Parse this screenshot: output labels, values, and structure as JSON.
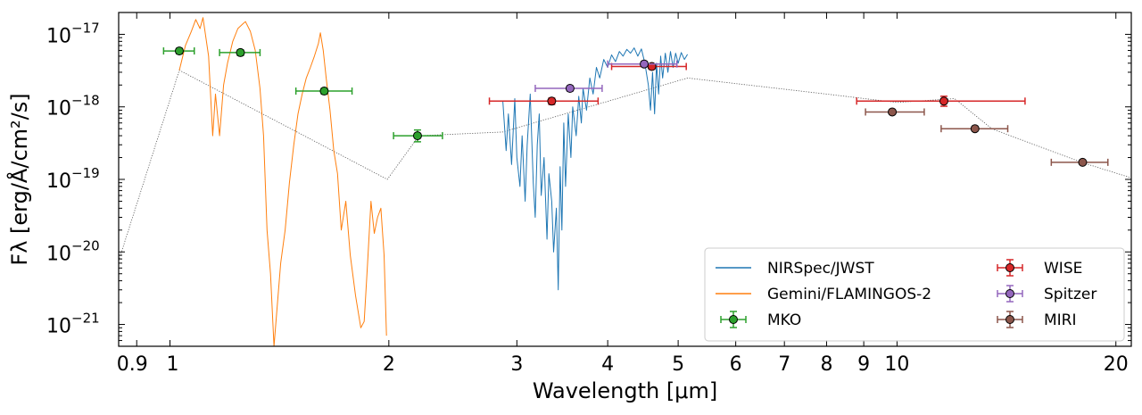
{
  "chart_data": {
    "type": "scatter",
    "xscale": "log",
    "yscale": "log",
    "xlabel": "Wavelength [μm]",
    "ylabel": "Fλ [erg/Å/cm²/s]",
    "xlim": [
      0.85,
      21
    ],
    "ylim": [
      5e-22,
      2e-17
    ],
    "xticks": [
      {
        "value": 0.9,
        "label": "0.9"
      },
      {
        "value": 1,
        "label": "1"
      },
      {
        "value": 2,
        "label": "2"
      },
      {
        "value": 3,
        "label": "3"
      },
      {
        "value": 4,
        "label": "4"
      },
      {
        "value": 5,
        "label": "5"
      },
      {
        "value": 6,
        "label": "6"
      },
      {
        "value": 7,
        "label": "7"
      },
      {
        "value": 8,
        "label": "8"
      },
      {
        "value": 9,
        "label": "9"
      },
      {
        "value": 10,
        "label": "10"
      },
      {
        "value": 20,
        "label": "20"
      }
    ],
    "yticks": [
      {
        "value": 1e-17,
        "base": "10",
        "exp": "−17"
      },
      {
        "value": 1e-18,
        "base": "10",
        "exp": "−18"
      },
      {
        "value": 1e-19,
        "base": "10",
        "exp": "−19"
      },
      {
        "value": 1e-20,
        "base": "10",
        "exp": "−20"
      },
      {
        "value": 1e-21,
        "base": "10",
        "exp": "−21"
      }
    ],
    "colors": {
      "nirspec": "#1f77b4",
      "flamingos": "#ff7f0e",
      "mko": "#2ca02c",
      "wise": "#d62728",
      "spitzer": "#9467bd",
      "miri": "#8c564b",
      "model": "#555555"
    },
    "spectra": [
      {
        "name": "NIRSpec/JWST",
        "color": "#1f77b4",
        "points": [
          [
            2.87,
            1.2e-18
          ],
          [
            2.9,
            2.5e-19
          ],
          [
            2.92,
            8e-19
          ],
          [
            2.95,
            1.6e-19
          ],
          [
            2.98,
            1.3e-18
          ],
          [
            3.0,
            2e-19
          ],
          [
            3.03,
            8e-20
          ],
          [
            3.05,
            4e-19
          ],
          [
            3.08,
            5e-20
          ],
          [
            3.1,
            3e-19
          ],
          [
            3.13,
            1.5e-18
          ],
          [
            3.16,
            9e-20
          ],
          [
            3.18,
            3e-20
          ],
          [
            3.2,
            3e-19
          ],
          [
            3.22,
            8e-19
          ],
          [
            3.24,
            6e-20
          ],
          [
            3.27,
            2e-19
          ],
          [
            3.3,
            1.5e-20
          ],
          [
            3.32,
            1.2e-19
          ],
          [
            3.35,
            5e-20
          ],
          [
            3.37,
            1e-20
          ],
          [
            3.4,
            4e-20
          ],
          [
            3.42,
            3e-21
          ],
          [
            3.44,
            1.5e-19
          ],
          [
            3.46,
            2e-20
          ],
          [
            3.48,
            6e-19
          ],
          [
            3.5,
            8e-20
          ],
          [
            3.53,
            8e-19
          ],
          [
            3.56,
            2e-19
          ],
          [
            3.58,
            1e-18
          ],
          [
            3.62,
            4e-19
          ],
          [
            3.65,
            1.4e-18
          ],
          [
            3.68,
            6e-19
          ],
          [
            3.7,
            1.8e-18
          ],
          [
            3.74,
            9e-19
          ],
          [
            3.78,
            2.5e-18
          ],
          [
            3.82,
            1.5e-18
          ],
          [
            3.86,
            3.5e-18
          ],
          [
            3.9,
            2.5e-18
          ],
          [
            3.95,
            4.5e-18
          ],
          [
            4.0,
            3.5e-18
          ],
          [
            4.05,
            5.2e-18
          ],
          [
            4.1,
            4.2e-18
          ],
          [
            4.15,
            5.8e-18
          ],
          [
            4.2,
            5e-18
          ],
          [
            4.25,
            6.2e-18
          ],
          [
            4.3,
            5.5e-18
          ],
          [
            4.35,
            6.5e-18
          ],
          [
            4.4,
            5e-18
          ],
          [
            4.45,
            6.3e-18
          ],
          [
            4.5,
            4e-18
          ],
          [
            4.55,
            2e-18
          ],
          [
            4.58,
            9e-19
          ],
          [
            4.61,
            3e-18
          ],
          [
            4.64,
            8e-19
          ],
          [
            4.67,
            4e-18
          ],
          [
            4.7,
            1.5e-18
          ],
          [
            4.73,
            5e-18
          ],
          [
            4.76,
            2.5e-18
          ],
          [
            4.8,
            5.5e-18
          ],
          [
            4.84,
            3e-18
          ],
          [
            4.88,
            5.8e-18
          ],
          [
            4.92,
            3.5e-18
          ],
          [
            4.96,
            5.5e-18
          ],
          [
            5.0,
            4e-18
          ],
          [
            5.05,
            5.6e-18
          ],
          [
            5.1,
            4.5e-18
          ],
          [
            5.15,
            5.3e-18
          ]
        ]
      },
      {
        "name": "Gemini/FLAMINGOS-2",
        "color": "#ff7f0e",
        "points": [
          [
            1.03,
            3.2e-18
          ],
          [
            1.05,
            7e-18
          ],
          [
            1.07,
            1.1e-17
          ],
          [
            1.085,
            1.6e-17
          ],
          [
            1.1,
            1.2e-17
          ],
          [
            1.11,
            1.7e-17
          ],
          [
            1.13,
            5e-18
          ],
          [
            1.145,
            4e-19
          ],
          [
            1.155,
            1.5e-18
          ],
          [
            1.17,
            4e-19
          ],
          [
            1.185,
            2e-18
          ],
          [
            1.2,
            4e-18
          ],
          [
            1.22,
            8e-18
          ],
          [
            1.24,
            1.2e-17
          ],
          [
            1.26,
            1.4e-17
          ],
          [
            1.27,
            1.5e-17
          ],
          [
            1.29,
            1.1e-17
          ],
          [
            1.31,
            6e-18
          ],
          [
            1.33,
            1.8e-18
          ],
          [
            1.345,
            4e-19
          ],
          [
            1.36,
            2e-20
          ],
          [
            1.375,
            5e-21
          ],
          [
            1.39,
            5e-22
          ],
          [
            1.42,
            7e-21
          ],
          [
            1.44,
            2e-20
          ],
          [
            1.46,
            9e-20
          ],
          [
            1.48,
            3e-19
          ],
          [
            1.5,
            8e-19
          ],
          [
            1.52,
            1.5e-18
          ],
          [
            1.54,
            2.5e-18
          ],
          [
            1.56,
            3.5e-18
          ],
          [
            1.58,
            5e-18
          ],
          [
            1.6,
            7.5e-18
          ],
          [
            1.61,
            1.05e-17
          ],
          [
            1.625,
            6e-18
          ],
          [
            1.64,
            2.5e-18
          ],
          [
            1.66,
            9e-19
          ],
          [
            1.68,
            2.5e-19
          ],
          [
            1.7,
            1.2e-19
          ],
          [
            1.72,
            2e-20
          ],
          [
            1.745,
            5e-20
          ],
          [
            1.77,
            9e-21
          ],
          [
            1.8,
            2.5e-21
          ],
          [
            1.83,
            9e-22
          ],
          [
            1.85,
            1.1e-21
          ],
          [
            1.87,
            7e-21
          ],
          [
            1.89,
            5e-20
          ],
          [
            1.91,
            1.8e-20
          ],
          [
            1.93,
            3e-20
          ],
          [
            1.95,
            4e-20
          ],
          [
            1.97,
            9e-21
          ],
          [
            1.985,
            7e-22
          ]
        ]
      }
    ],
    "model_line": {
      "name": "model",
      "points": [
        [
          0.85,
          7.5e-21
        ],
        [
          1.03,
          3.2e-18
        ],
        [
          1.99,
          1e-19
        ],
        [
          2.2,
          4e-19
        ],
        [
          2.87,
          4.5e-19
        ],
        [
          5.15,
          2.5e-18
        ],
        [
          8,
          1.5e-18
        ],
        [
          10,
          1.15e-18
        ],
        [
          12,
          1.3e-18
        ],
        [
          13.5,
          5e-19
        ],
        [
          18,
          1.7e-19
        ],
        [
          21,
          1.05e-19
        ]
      ]
    },
    "photometry": [
      {
        "name": "MKO",
        "color": "#2ca02c",
        "points": [
          {
            "x": 1.03,
            "y": 5.9e-18,
            "xerr": [
              0.98,
              1.08
            ],
            "yerr": [
              5.4e-18,
              6.4e-18
            ]
          },
          {
            "x": 1.25,
            "y": 5.6e-18,
            "xerr": [
              1.17,
              1.33
            ],
            "yerr": [
              5.1e-18,
              6.1e-18
            ]
          },
          {
            "x": 1.63,
            "y": 1.65e-18,
            "xerr": [
              1.49,
              1.78
            ],
            "yerr": [
              1.5e-18,
              1.8e-18
            ]
          },
          {
            "x": 2.19,
            "y": 4e-19,
            "xerr": [
              2.03,
              2.37
            ],
            "yerr": [
              3.3e-19,
              4.8e-19
            ]
          }
        ]
      },
      {
        "name": "WISE",
        "color": "#d62728",
        "points": [
          {
            "x": 3.35,
            "y": 1.2e-18,
            "xerr": [
              2.75,
              3.88
            ],
            "yerr": [
              1.08e-18,
              1.32e-18
            ]
          },
          {
            "x": 4.6,
            "y": 3.6e-18,
            "xerr": [
              4.05,
              5.13
            ],
            "yerr": [
              3.3e-18,
              3.9e-18
            ]
          },
          {
            "x": 11.6,
            "y": 1.2e-18,
            "xerr": [
              8.8,
              15.0
            ],
            "yerr": [
              1.02e-18,
              1.4e-18
            ]
          }
        ]
      },
      {
        "name": "Spitzer",
        "color": "#9467bd",
        "points": [
          {
            "x": 3.55,
            "y": 1.8e-18,
            "xerr": [
              3.18,
              3.93
            ],
            "yerr": [
              1.65e-18,
              1.95e-18
            ]
          },
          {
            "x": 4.49,
            "y": 3.9e-18,
            "xerr": [
              4.0,
              4.98
            ],
            "yerr": [
              3.6e-18,
              4.2e-18
            ]
          }
        ]
      },
      {
        "name": "MIRI",
        "color": "#8c564b",
        "points": [
          {
            "x": 9.85,
            "y": 8.5e-19,
            "xerr": [
              9.05,
              10.9
            ],
            "yerr": [
              8.2e-19,
              8.8e-19
            ]
          },
          {
            "x": 12.8,
            "y": 5e-19,
            "xerr": [
              11.5,
              14.2
            ],
            "yerr": [
              4.8e-19,
              5.2e-19
            ]
          },
          {
            "x": 18.0,
            "y": 1.72e-19,
            "xerr": [
              16.3,
              19.5
            ],
            "yerr": [
              1.65e-19,
              1.8e-19
            ]
          }
        ]
      }
    ],
    "legend": {
      "position": "lower-right",
      "left_column": [
        {
          "label": "NIRSpec/JWST",
          "kind": "line",
          "color": "#1f77b4"
        },
        {
          "label": "Gemini/FLAMINGOS-2",
          "kind": "line",
          "color": "#ff7f0e"
        },
        {
          "label": "MKO",
          "kind": "errorbar",
          "color": "#2ca02c"
        }
      ],
      "right_column": [
        {
          "label": "WISE",
          "kind": "errorbar",
          "color": "#d62728"
        },
        {
          "label": "Spitzer",
          "kind": "errorbar",
          "color": "#9467bd"
        },
        {
          "label": "MIRI",
          "kind": "errorbar",
          "color": "#8c564b"
        }
      ]
    }
  }
}
